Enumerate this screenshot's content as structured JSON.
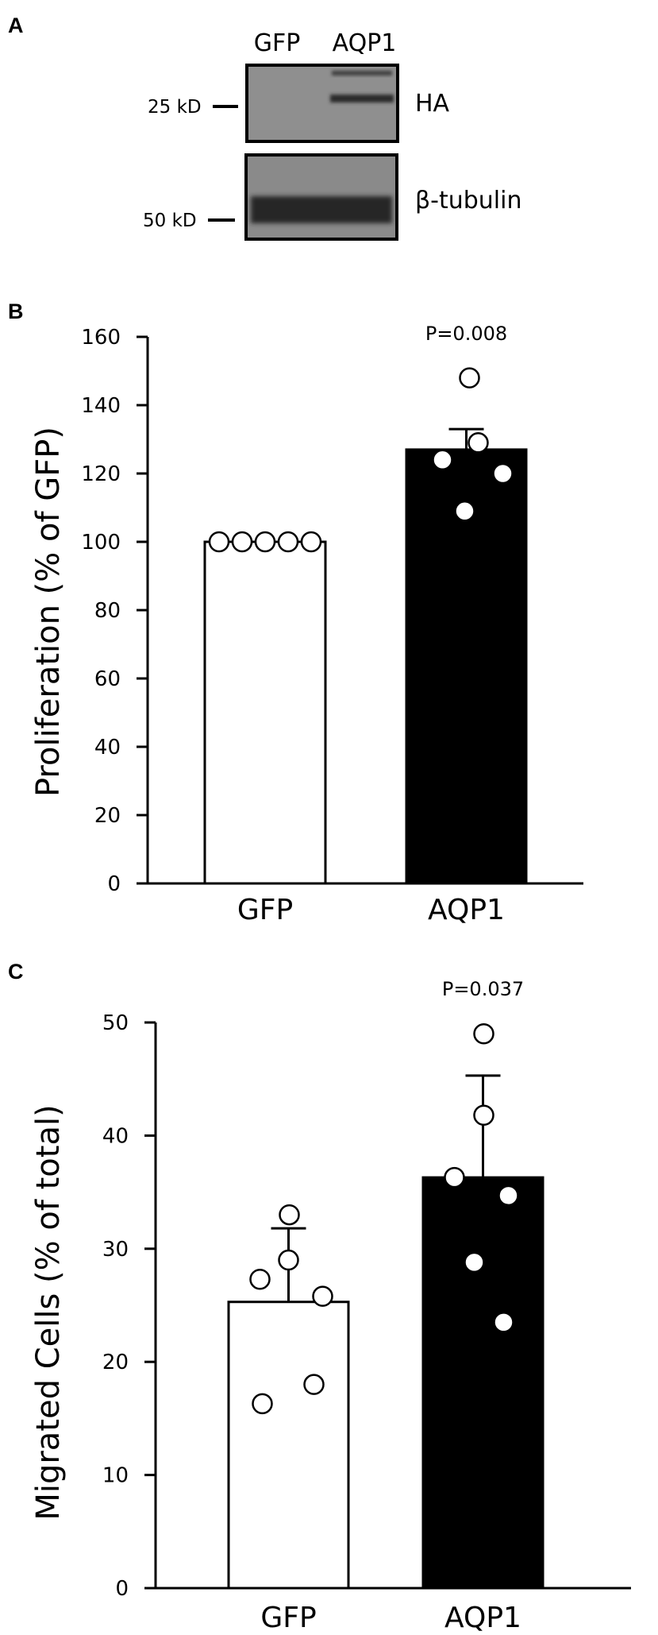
{
  "panels": {
    "a": "A",
    "b": "B",
    "c": "C"
  },
  "blot": {
    "lanes": [
      "GFP",
      "AQP1"
    ],
    "markers": [
      "25 kD",
      "50 kD"
    ],
    "targets": [
      "HA",
      "β-tubulin"
    ]
  },
  "chart_data": [
    {
      "type": "bar",
      "panel": "B",
      "ylabel": "Proliferation (% of GFP)",
      "categories": [
        "GFP",
        "AQP1"
      ],
      "values": [
        100,
        127
      ],
      "error": [
        0,
        6
      ],
      "points": [
        [
          100,
          100,
          100,
          100,
          100
        ],
        [
          148,
          129,
          124,
          120,
          109
        ]
      ],
      "ylim": [
        0,
        160
      ],
      "yticks": [
        "0",
        "20",
        "40",
        "60",
        "80",
        "100",
        "120",
        "140",
        "160"
      ],
      "bar_colors": [
        "#ffffff",
        "#000000"
      ],
      "annotation": "P=0.008",
      "grid": false
    },
    {
      "type": "bar",
      "panel": "C",
      "ylabel": "Migrated Cells (% of total)",
      "categories": [
        "GFP",
        "AQP1"
      ],
      "values": [
        25.3,
        36.3
      ],
      "error": [
        6.5,
        9.0
      ],
      "points": [
        [
          33.0,
          29.0,
          27.3,
          25.8,
          18.0,
          16.3
        ],
        [
          49.0,
          41.8,
          36.3,
          34.7,
          28.8,
          23.5
        ]
      ],
      "ylim": [
        0,
        50
      ],
      "yticks": [
        "0",
        "10",
        "20",
        "30",
        "40",
        "50"
      ],
      "bar_colors": [
        "#ffffff",
        "#000000"
      ],
      "annotation": "P=0.037",
      "grid": false
    }
  ]
}
